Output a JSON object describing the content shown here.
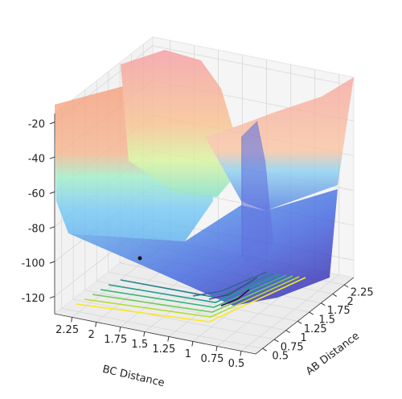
{
  "chart_data": {
    "type": "surface3d",
    "x_label": "BC Distance",
    "y_label": "AB Distance",
    "xlim": [
      0.35,
      2.43
    ],
    "xticks": [
      2.25,
      2.0,
      1.75,
      1.5,
      1.25,
      1.0,
      0.75,
      0.5
    ],
    "ylim": [
      0.35,
      2.45
    ],
    "yticks": [
      0.5,
      0.75,
      1.0,
      1.25,
      1.5,
      1.75,
      2.0,
      2.25
    ],
    "zlim": [
      -130,
      -15
    ],
    "zticks": [
      -20,
      -40,
      -60,
      -80,
      -100,
      -120
    ]
  }
}
